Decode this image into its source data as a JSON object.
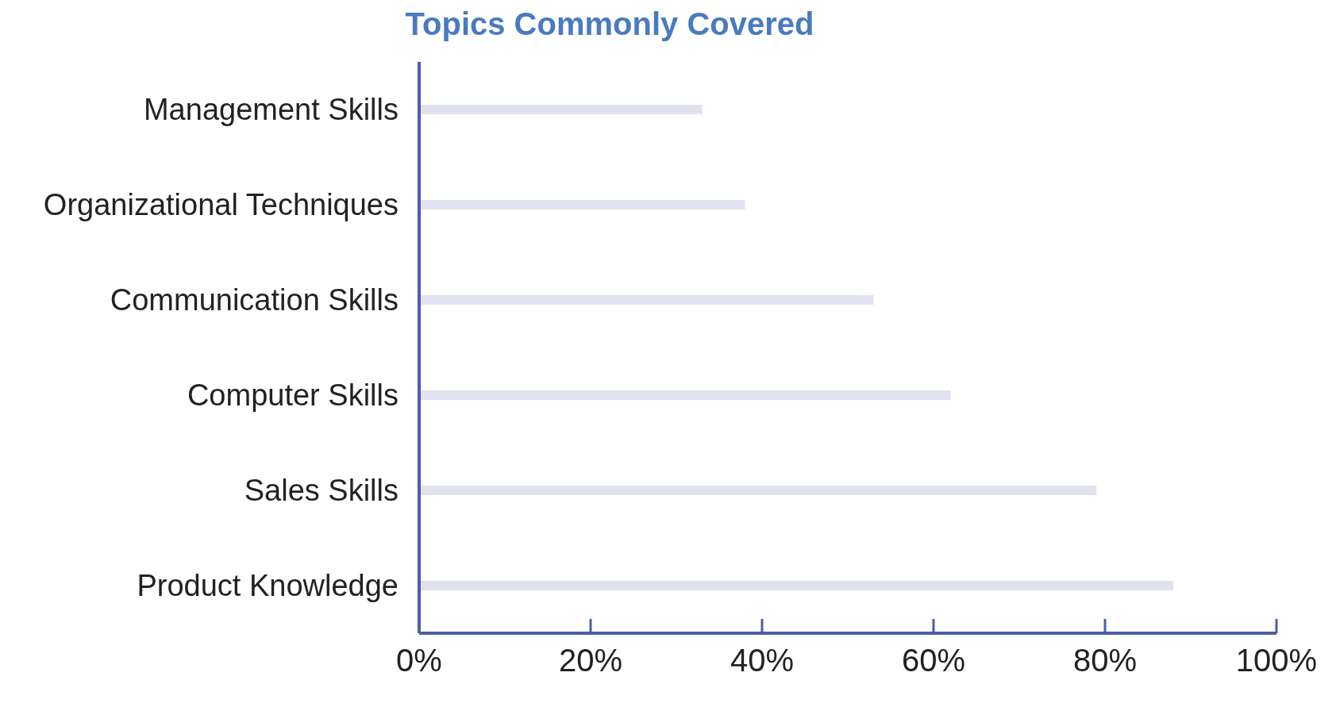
{
  "chart_data": {
    "type": "bar",
    "orientation": "horizontal",
    "title": "Topics Commonly Covered",
    "categories": [
      "Management Skills",
      "Organizational Techniques",
      "Communication Skills",
      "Computer Skills",
      "Sales Skills",
      "Product Knowledge"
    ],
    "values": [
      33,
      38,
      53,
      62,
      79,
      88
    ],
    "color": "#e0e2ef",
    "xlim": [
      0,
      100
    ],
    "xticks": [
      {
        "value": 0,
        "label": "0%"
      },
      {
        "value": 20,
        "label": "20%"
      },
      {
        "value": 40,
        "label": "40%"
      },
      {
        "value": 60,
        "label": "60%"
      },
      {
        "value": 80,
        "label": "80%"
      },
      {
        "value": 100,
        "label": "100%"
      }
    ],
    "grid": false,
    "legend": false
  }
}
